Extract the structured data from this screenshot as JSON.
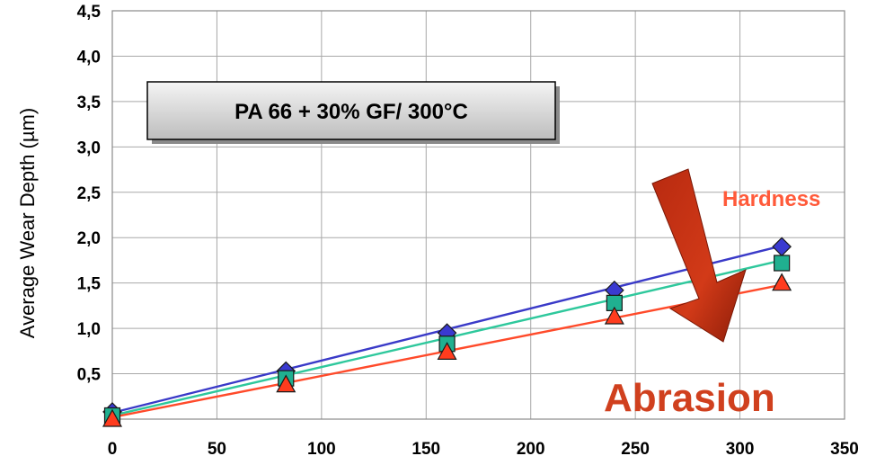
{
  "chart_data": {
    "type": "line",
    "title": "PA 66 + 30% GF/ 300°C",
    "xlabel": "",
    "ylabel": "Average Wear Depth (µm)",
    "xlim": [
      0,
      350
    ],
    "ylim": [
      0,
      4.5
    ],
    "x_ticks": [
      0,
      50,
      100,
      150,
      200,
      250,
      300,
      350
    ],
    "x_tick_labels": [
      "0",
      "50",
      "100",
      "150",
      "200",
      "250",
      "300",
      "350"
    ],
    "y_ticks": [
      0.5,
      1.0,
      1.5,
      2.0,
      2.5,
      3.0,
      3.5,
      4.0,
      4.5
    ],
    "y_tick_labels": [
      "0,5",
      "1,0",
      "1,5",
      "2,0",
      "2,5",
      "3,0",
      "3,5",
      "4,0",
      "4,5"
    ],
    "grid": true,
    "legend": "none",
    "series": [
      {
        "marker": "diamond",
        "color": "#3a3ac8",
        "fill": "#3a3ad0",
        "x": [
          0,
          83,
          160,
          240,
          320
        ],
        "y": [
          0.08,
          0.53,
          0.95,
          1.42,
          1.9
        ],
        "fit": [
          [
            0,
            0.07
          ],
          [
            320,
            1.91
          ]
        ]
      },
      {
        "marker": "square",
        "color": "#2ec89c",
        "fill": "#20b090",
        "x": [
          0,
          83,
          160,
          240,
          320
        ],
        "y": [
          0.04,
          0.45,
          0.83,
          1.28,
          1.72
        ],
        "fit": [
          [
            0,
            0.04
          ],
          [
            320,
            1.75
          ]
        ]
      },
      {
        "marker": "triangle",
        "color": "#ff4a2a",
        "fill": "#ff3c1e",
        "x": [
          0,
          83,
          160,
          240,
          320
        ],
        "y": [
          0.0,
          0.38,
          0.74,
          1.13,
          1.5
        ],
        "fit": [
          [
            0,
            0.02
          ],
          [
            320,
            1.48
          ]
        ]
      }
    ],
    "annotations": {
      "box_label": "PA 66 + 30% GF/ 300°C",
      "hardness_label": "Hardness",
      "hardness_color": "#ff5a3a",
      "abrasion_label": "Abrasion",
      "abrasion_color": "#d0401e",
      "arrow_color": "#c83214"
    }
  }
}
